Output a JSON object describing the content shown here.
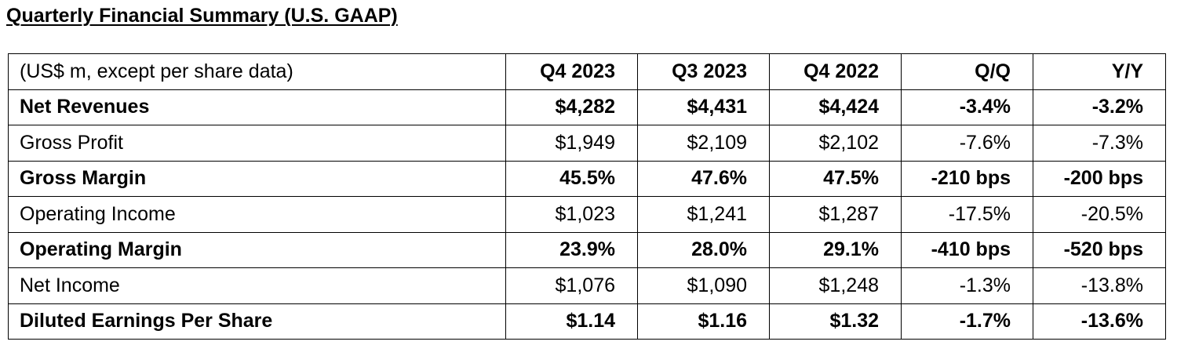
{
  "title": "Quarterly Financial Summary (U.S. GAAP)",
  "table": {
    "header": {
      "label": "(US$ m, except per share data)",
      "columns": [
        "Q4 2023",
        "Q3 2023",
        "Q4 2022",
        "Q/Q",
        "Y/Y"
      ]
    },
    "rows": [
      {
        "label": "Net Revenues",
        "bold": true,
        "values": [
          "$4,282",
          "$4,431",
          "$4,424",
          "-3.4%",
          "-3.2%"
        ]
      },
      {
        "label": "Gross Profit",
        "bold": false,
        "values": [
          "$1,949",
          "$2,109",
          "$2,102",
          "-7.6%",
          "-7.3%"
        ]
      },
      {
        "label": "Gross Margin",
        "bold": true,
        "values": [
          "45.5%",
          "47.6%",
          "47.5%",
          "-210 bps",
          "-200 bps"
        ]
      },
      {
        "label": "Operating Income",
        "bold": false,
        "values": [
          "$1,023",
          "$1,241",
          "$1,287",
          "-17.5%",
          "-20.5%"
        ]
      },
      {
        "label": "Operating Margin",
        "bold": true,
        "values": [
          "23.9%",
          "28.0%",
          "29.1%",
          "-410 bps",
          "-520 bps"
        ]
      },
      {
        "label": "Net Income",
        "bold": false,
        "values": [
          "$1,076",
          "$1,090",
          "$1,248",
          "-1.3%",
          "-13.8%"
        ]
      },
      {
        "label": "Diluted Earnings Per Share",
        "bold": true,
        "values": [
          "$1.14",
          "$1.16",
          "$1.32",
          "-1.7%",
          "-13.6%"
        ]
      }
    ]
  }
}
